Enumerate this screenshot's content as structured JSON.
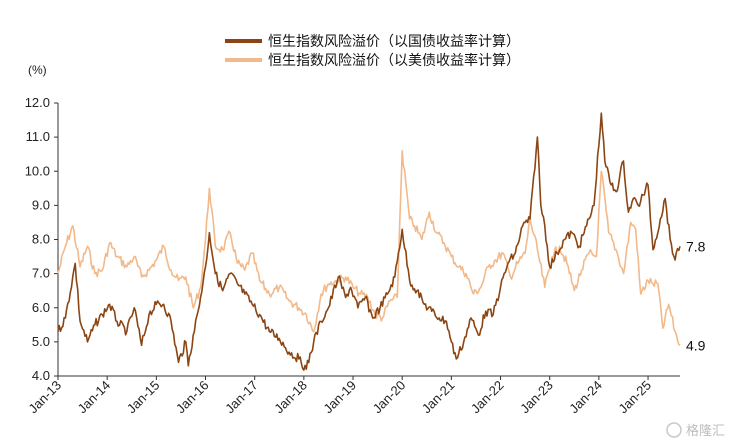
{
  "chart_data": {
    "type": "line",
    "unit_label": "(%)",
    "ylim": [
      4.0,
      12.0
    ],
    "yticks": [
      "4.0",
      "5.0",
      "6.0",
      "7.0",
      "8.0",
      "9.0",
      "10.0",
      "11.0",
      "12.0"
    ],
    "xlim": [
      2013.0,
      2025.65
    ],
    "xticks": [
      "Jan-13",
      "Jan-14",
      "Jan-15",
      "Jan-16",
      "Jan-17",
      "Jan-18",
      "Jan-19",
      "Jan-20",
      "Jan-21",
      "Jan-22",
      "Jan-23",
      "Jan-24",
      "Jan-25"
    ],
    "grid": false,
    "legend_position": "top",
    "series": [
      {
        "name": "恒生指数风险溢价（以国债收益率计算）",
        "color": "#8B4513",
        "end_label": "7.8",
        "x": [
          2013.0,
          2013.15,
          2013.35,
          2013.45,
          2013.6,
          2013.75,
          2013.9,
          2014.05,
          2014.2,
          2014.4,
          2014.55,
          2014.7,
          2014.85,
          2015.0,
          2015.15,
          2015.3,
          2015.45,
          2015.6,
          2015.65,
          2015.75,
          2015.85,
          2016.0,
          2016.08,
          2016.2,
          2016.35,
          2016.5,
          2016.65,
          2016.8,
          2016.95,
          2017.1,
          2017.3,
          2017.5,
          2017.7,
          2017.9,
          2018.05,
          2018.2,
          2018.35,
          2018.5,
          2018.7,
          2018.85,
          2018.95,
          2019.1,
          2019.25,
          2019.4,
          2019.55,
          2019.7,
          2019.85,
          2020.0,
          2020.15,
          2020.3,
          2020.45,
          2020.6,
          2020.75,
          2020.9,
          2021.0,
          2021.1,
          2021.25,
          2021.4,
          2021.55,
          2021.7,
          2021.85,
          2022.0,
          2022.15,
          2022.3,
          2022.45,
          2022.6,
          2022.75,
          2022.82,
          2022.9,
          2023.0,
          2023.15,
          2023.3,
          2023.45,
          2023.6,
          2023.75,
          2023.9,
          2024.05,
          2024.12,
          2024.25,
          2024.35,
          2024.5,
          2024.6,
          2024.7,
          2024.8,
          2024.9,
          2025.0,
          2025.1,
          2025.25,
          2025.35,
          2025.45,
          2025.55,
          2025.65
        ],
        "y": [
          5.3,
          5.7,
          7.3,
          5.6,
          5.0,
          5.5,
          5.8,
          6.1,
          5.6,
          5.3,
          6.0,
          4.9,
          5.8,
          6.1,
          6.1,
          5.6,
          4.4,
          5.0,
          4.3,
          5.2,
          5.9,
          7.2,
          8.2,
          7.0,
          6.5,
          7.0,
          6.7,
          6.4,
          6.1,
          5.8,
          5.3,
          5.1,
          4.7,
          4.5,
          4.2,
          5.0,
          5.6,
          6.0,
          6.9,
          6.3,
          6.6,
          6.0,
          6.3,
          5.7,
          6.0,
          6.4,
          6.9,
          8.3,
          6.8,
          6.5,
          6.1,
          5.9,
          5.7,
          5.6,
          5.0,
          4.5,
          5.0,
          5.7,
          5.2,
          5.9,
          5.8,
          6.6,
          7.3,
          7.6,
          8.4,
          8.6,
          11.0,
          9.0,
          8.4,
          7.2,
          7.6,
          8.0,
          8.2,
          7.8,
          8.4,
          9.0,
          11.7,
          10.3,
          9.6,
          9.4,
          10.3,
          8.8,
          9.2,
          9.0,
          9.3,
          9.6,
          7.7,
          8.6,
          9.2,
          8.0,
          7.4,
          7.8
        ]
      },
      {
        "name": "恒生指数风险溢价（以美债收益率计算）",
        "color": "#F2B98A",
        "end_label": "4.9",
        "x": [
          2013.0,
          2013.15,
          2013.3,
          2013.45,
          2013.6,
          2013.75,
          2013.9,
          2014.05,
          2014.2,
          2014.4,
          2014.55,
          2014.7,
          2014.85,
          2015.0,
          2015.15,
          2015.3,
          2015.45,
          2015.6,
          2015.75,
          2015.9,
          2016.0,
          2016.08,
          2016.2,
          2016.35,
          2016.5,
          2016.65,
          2016.8,
          2016.95,
          2017.1,
          2017.3,
          2017.5,
          2017.7,
          2017.9,
          2018.05,
          2018.2,
          2018.35,
          2018.5,
          2018.7,
          2018.85,
          2019.0,
          2019.15,
          2019.3,
          2019.45,
          2019.6,
          2019.75,
          2019.9,
          2020.0,
          2020.15,
          2020.25,
          2020.4,
          2020.55,
          2020.7,
          2020.85,
          2021.0,
          2021.15,
          2021.3,
          2021.45,
          2021.6,
          2021.75,
          2021.9,
          2022.05,
          2022.2,
          2022.35,
          2022.5,
          2022.6,
          2022.75,
          2022.9,
          2023.05,
          2023.2,
          2023.35,
          2023.5,
          2023.65,
          2023.8,
          2023.95,
          2024.05,
          2024.2,
          2024.35,
          2024.5,
          2024.65,
          2024.75,
          2024.85,
          2025.0,
          2025.1,
          2025.2,
          2025.3,
          2025.42,
          2025.55,
          2025.65
        ],
        "y": [
          7.0,
          7.8,
          8.4,
          7.2,
          7.8,
          7.0,
          7.1,
          7.9,
          7.5,
          7.2,
          7.5,
          6.9,
          7.1,
          7.4,
          7.8,
          7.1,
          6.8,
          6.9,
          6.0,
          6.6,
          8.0,
          9.5,
          7.8,
          7.7,
          8.2,
          7.3,
          7.1,
          7.6,
          6.8,
          6.4,
          6.6,
          6.2,
          6.0,
          5.8,
          5.3,
          6.4,
          6.7,
          6.8,
          6.9,
          6.6,
          6.4,
          6.3,
          5.8,
          5.7,
          6.2,
          6.3,
          10.6,
          8.6,
          8.4,
          8.0,
          8.8,
          8.2,
          7.9,
          7.5,
          7.2,
          7.0,
          6.4,
          6.6,
          7.2,
          7.4,
          7.6,
          6.9,
          7.3,
          7.6,
          8.6,
          7.7,
          6.6,
          7.5,
          7.8,
          7.3,
          6.5,
          7.1,
          7.6,
          7.5,
          10.0,
          8.2,
          7.7,
          7.0,
          8.5,
          8.3,
          6.4,
          6.8,
          6.7,
          6.7,
          5.4,
          6.1,
          5.3,
          4.9
        ]
      }
    ]
  },
  "watermark": "格隆汇"
}
